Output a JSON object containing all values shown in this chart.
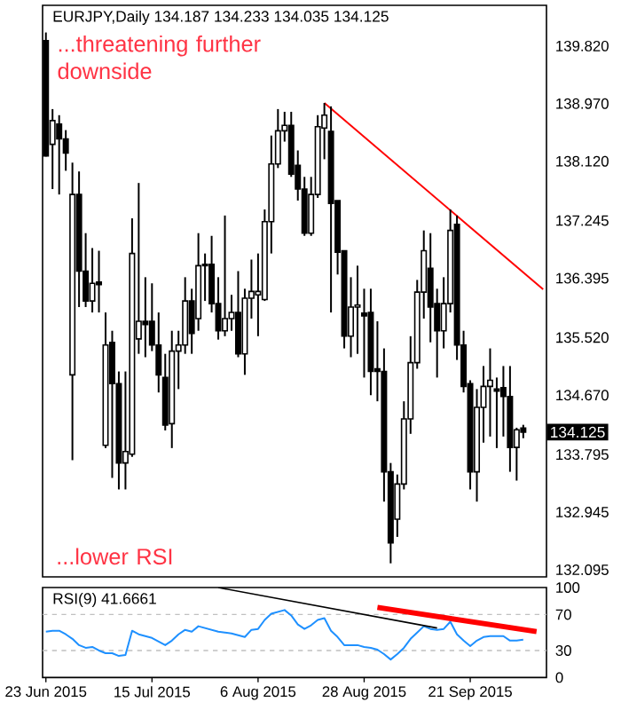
{
  "chart_data": [
    {
      "type": "candlestick",
      "title": "EURJPY,Daily  134.187 134.233 134.035 134.125",
      "color": "#000000",
      "tick_labels": "y",
      "categories": [
        null,
        null,
        null,
        null,
        null,
        null,
        null,
        null,
        null,
        null,
        null,
        null,
        null,
        null,
        null,
        null,
        null,
        null,
        null,
        null,
        null,
        null,
        null,
        null,
        null,
        null,
        null,
        null,
        null,
        null,
        null,
        null,
        null,
        null,
        null,
        null,
        null,
        null,
        null,
        null,
        null,
        null,
        null,
        null,
        null,
        null,
        null,
        null,
        null,
        null,
        null,
        null,
        null,
        null,
        null,
        null,
        null,
        null,
        null,
        null,
        null,
        null,
        null,
        null,
        null,
        null,
        null,
        null,
        null,
        null,
        null,
        null,
        null,
        null,
        null,
        null
      ],
      "ohlc": [
        [
          139.9,
          140.02,
          138.19,
          138.2
        ],
        [
          138.37,
          138.89,
          137.71,
          138.72
        ],
        [
          138.67,
          138.8,
          137.63,
          138.45
        ],
        [
          138.45,
          138.58,
          137.98,
          138.24
        ],
        [
          134.97,
          138.1,
          133.71,
          137.63
        ],
        [
          137.63,
          137.97,
          135.97,
          136.5
        ],
        [
          136.5,
          137.06,
          135.97,
          136.06
        ],
        [
          136.06,
          136.84,
          135.89,
          136.32
        ],
        [
          136.34,
          136.8,
          135.89,
          136.3
        ],
        [
          133.93,
          135.89,
          133.89,
          135.41
        ],
        [
          135.45,
          135.62,
          133.45,
          134.84
        ],
        [
          134.84,
          135.02,
          133.28,
          133.67
        ],
        [
          133.67,
          135.02,
          133.28,
          133.84
        ],
        [
          133.8,
          137.28,
          133.76,
          136.76
        ],
        [
          135.5,
          137.8,
          135.28,
          135.76
        ],
        [
          135.76,
          136.41,
          135.23,
          135.71
        ],
        [
          135.76,
          136.32,
          135.32,
          135.41
        ],
        [
          135.41,
          135.89,
          134.71,
          134.97
        ],
        [
          134.93,
          135.28,
          134.15,
          134.23
        ],
        [
          134.25,
          135.62,
          133.89,
          135.32
        ],
        [
          135.32,
          135.62,
          134.76,
          135.41
        ],
        [
          135.41,
          136.41,
          135.28,
          136.06
        ],
        [
          136.06,
          136.24,
          135.28,
          135.58
        ],
        [
          135.8,
          137.06,
          135.62,
          136.58
        ],
        [
          136.6,
          136.76,
          136.06,
          136.58
        ],
        [
          136.6,
          137.02,
          135.89,
          136.02
        ],
        [
          136.02,
          136.41,
          135.49,
          135.62
        ],
        [
          135.62,
          137.32,
          135.54,
          135.8
        ],
        [
          135.8,
          136.15,
          135.62,
          135.89
        ],
        [
          135.89,
          136.5,
          135.23,
          135.28
        ],
        [
          135.28,
          136.24,
          134.97,
          136.1
        ],
        [
          136.1,
          136.67,
          135.8,
          136.2
        ],
        [
          136.15,
          136.76,
          135.54,
          136.2
        ],
        [
          136.08,
          137.41,
          136.06,
          137.23
        ],
        [
          137.23,
          138.5,
          136.76,
          138.08
        ],
        [
          138.08,
          138.89,
          138.02,
          138.57
        ],
        [
          138.57,
          138.85,
          138.41,
          138.65
        ],
        [
          138.65,
          138.85,
          137.89,
          137.93
        ],
        [
          138.06,
          138.28,
          137.54,
          137.71
        ],
        [
          137.71,
          137.89,
          137.02,
          137.06
        ],
        [
          137.06,
          137.89,
          137.02,
          137.63
        ],
        [
          137.63,
          138.8,
          137.58,
          138.63
        ],
        [
          138.61,
          138.98,
          138.15,
          138.8
        ],
        [
          138.56,
          138.93,
          135.89,
          137.5
        ],
        [
          137.54,
          137.54,
          136.45,
          136.78
        ],
        [
          136.8,
          136.8,
          135.36,
          135.54
        ],
        [
          135.54,
          136.41,
          135.23,
          135.97
        ],
        [
          135.97,
          136.58,
          135.28,
          136.0
        ],
        [
          135.88,
          136.24,
          134.93,
          135.84
        ],
        [
          135.89,
          136.24,
          134.67,
          135.02
        ],
        [
          135.06,
          135.76,
          134.58,
          135.02
        ],
        [
          135.02,
          135.36,
          133.1,
          133.54
        ],
        [
          133.54,
          133.67,
          132.19,
          132.49
        ],
        [
          132.84,
          133.5,
          132.58,
          133.36
        ],
        [
          133.36,
          134.58,
          133.28,
          134.32
        ],
        [
          134.32,
          135.54,
          134.1,
          135.15
        ],
        [
          135.15,
          136.37,
          135.06,
          136.19
        ],
        [
          136.19,
          137.1,
          135.8,
          136.8
        ],
        [
          136.54,
          137.06,
          135.45,
          135.97
        ],
        [
          136.02,
          136.24,
          134.93,
          135.62
        ],
        [
          135.62,
          136.41,
          135.36,
          136.02
        ],
        [
          136.02,
          137.41,
          135.89,
          137.1
        ],
        [
          137.19,
          137.32,
          135.19,
          135.41
        ],
        [
          135.41,
          135.62,
          134.71,
          134.8
        ],
        [
          134.84,
          134.89,
          133.28,
          133.54
        ],
        [
          133.54,
          134.76,
          133.1,
          134.49
        ],
        [
          134.49,
          135.1,
          133.97,
          134.8
        ],
        [
          134.8,
          135.36,
          134.06,
          134.89
        ],
        [
          134.76,
          134.93,
          133.89,
          134.73
        ],
        [
          134.78,
          135.1,
          134.06,
          134.65
        ],
        [
          134.65,
          135.1,
          133.54,
          133.9
        ],
        [
          133.9,
          134.19,
          133.41,
          134.16
        ],
        [
          134.187,
          134.233,
          134.035,
          134.125
        ],
        null,
        null,
        null
      ],
      "series": [
        {
          "type": "line",
          "color": "#ff0000",
          "values": [
            null,
            null,
            null,
            null,
            null,
            null,
            null,
            null,
            null,
            null,
            null,
            null,
            null,
            null,
            null,
            null,
            null,
            null,
            null,
            null,
            null,
            null,
            null,
            null,
            null,
            null,
            null,
            null,
            null,
            null,
            null,
            null,
            null,
            null,
            null,
            null,
            null,
            null,
            null,
            null,
            null,
            null,
            138.98,
            null,
            null,
            null,
            null,
            null,
            null,
            null,
            null,
            null,
            null,
            null,
            null,
            null,
            null,
            null,
            null,
            null,
            null,
            null,
            null,
            null,
            null,
            null,
            null,
            null,
            null,
            null,
            null,
            null,
            null,
            null,
            null,
            136.23
          ]
        }
      ],
      "ylim": [
        131.99,
        140.42
      ],
      "yticks": [
        {
          "value": 139.82,
          "label": "139.820"
        },
        {
          "value": 138.97,
          "label": "138.970"
        },
        {
          "value": 138.12,
          "label": "138.120"
        },
        {
          "value": 137.245,
          "label": "137.245"
        },
        {
          "value": 136.395,
          "label": "136.395"
        },
        {
          "value": 135.52,
          "label": "135.520"
        },
        {
          "value": 134.67,
          "label": "134.670"
        },
        {
          "value": 133.795,
          "label": "133.795"
        },
        {
          "value": 132.945,
          "label": "132.945"
        },
        {
          "value": 132.095,
          "label": "132.095"
        }
      ],
      "annotations": [
        "...threatening further downside",
        "...lower RSI",
        "134.125"
      ]
    },
    {
      "type": "line",
      "title": "RSI(9) 41.6661",
      "categories": [
        "23 Jun 2015",
        null,
        null,
        null,
        null,
        null,
        null,
        null,
        null,
        null,
        null,
        null,
        null,
        null,
        null,
        null,
        "15 Jul 2015",
        null,
        null,
        null,
        null,
        null,
        null,
        null,
        null,
        null,
        null,
        null,
        null,
        null,
        null,
        null,
        "6 Aug 2015",
        null,
        null,
        null,
        null,
        null,
        null,
        null,
        null,
        null,
        null,
        null,
        null,
        null,
        null,
        null,
        "28 Aug 2015",
        null,
        null,
        null,
        null,
        null,
        null,
        null,
        null,
        null,
        null,
        null,
        null,
        null,
        null,
        null,
        "21 Sep 2015",
        null,
        null,
        null,
        null,
        null,
        null,
        null,
        null,
        null,
        null,
        null
      ],
      "series": [
        {
          "color": "#1e90ff",
          "values": [
            51,
            52,
            52,
            48,
            43,
            36,
            33,
            34,
            30,
            27,
            27,
            24,
            25,
            52,
            48,
            46,
            44,
            40,
            36,
            41,
            48,
            53,
            51,
            57,
            55,
            53,
            51,
            50,
            49,
            47,
            45,
            53,
            54,
            64,
            71,
            73,
            75,
            69,
            59,
            54,
            58,
            64,
            66,
            52,
            45,
            36,
            36,
            36,
            34,
            33,
            31,
            26,
            20,
            26,
            33,
            43,
            50,
            57,
            54,
            53,
            54,
            62,
            48,
            41,
            35,
            41,
            45,
            46,
            46,
            46,
            41,
            41,
            42,
            null,
            null,
            null
          ]
        },
        {
          "color": "#000000",
          "values": [
            null,
            null,
            null,
            null,
            null,
            null,
            null,
            null,
            null,
            null,
            null,
            null,
            null,
            null,
            null,
            null,
            null,
            null,
            null,
            null,
            null,
            null,
            null,
            null,
            null,
            null,
            100,
            null,
            null,
            null,
            null,
            null,
            null,
            null,
            null,
            null,
            null,
            null,
            null,
            null,
            null,
            null,
            null,
            null,
            null,
            null,
            null,
            null,
            null,
            null,
            null,
            null,
            null,
            null,
            null,
            null,
            null,
            null,
            null,
            55,
            null,
            null,
            null,
            null,
            null,
            null,
            null,
            null,
            null,
            null,
            null,
            null,
            null,
            null,
            null,
            null
          ]
        },
        {
          "color": "#ff0000",
          "values": [
            null,
            null,
            null,
            null,
            null,
            null,
            null,
            null,
            null,
            null,
            null,
            null,
            null,
            null,
            null,
            null,
            null,
            null,
            null,
            null,
            null,
            null,
            null,
            null,
            null,
            null,
            null,
            null,
            null,
            null,
            null,
            null,
            null,
            null,
            null,
            null,
            null,
            null,
            null,
            null,
            null,
            null,
            null,
            null,
            null,
            null,
            null,
            null,
            null,
            null,
            78,
            null,
            null,
            null,
            null,
            null,
            null,
            null,
            null,
            null,
            null,
            null,
            null,
            null,
            null,
            null,
            null,
            null,
            null,
            null,
            null,
            null,
            null,
            null,
            51,
            null
          ]
        }
      ],
      "ref_lines": [
        {
          "axis": "y",
          "value": 70,
          "color": "#c0c0c0",
          "line_style": "dashed"
        },
        {
          "axis": "y",
          "value": 30,
          "color": "#c0c0c0",
          "line_style": "dashed"
        }
      ],
      "ylim": [
        0,
        100
      ],
      "yticks": [
        100,
        70,
        30,
        0
      ]
    }
  ]
}
